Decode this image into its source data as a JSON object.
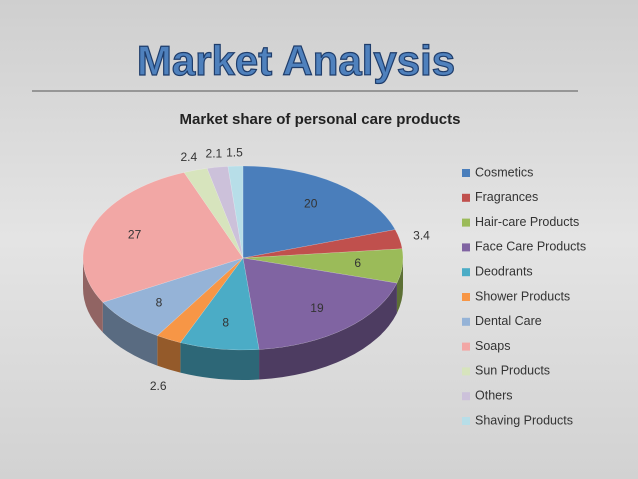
{
  "header": {
    "title": "Market Analysis"
  },
  "chart_data": {
    "type": "pie",
    "title": "Market share of personal care products",
    "categories": [
      "Cosmetics",
      "Fragrances",
      "Hair-care Products",
      "Face Care Products",
      "Deodrants",
      "Shower Products",
      "Dental Care",
      "Soaps",
      "Sun Products",
      "Others",
      "Shaving Products"
    ],
    "values": [
      20,
      3.4,
      6,
      19,
      8,
      2.6,
      8,
      27,
      2.4,
      2.1,
      1.5
    ],
    "colors": [
      "#4a7ebb",
      "#c0504d",
      "#9bbb59",
      "#8064a2",
      "#4bacc6",
      "#f79646",
      "#95b3d7",
      "#f2a7a5",
      "#d7e4bd",
      "#ccc1da",
      "#b7dee8"
    ],
    "legend": "right"
  }
}
